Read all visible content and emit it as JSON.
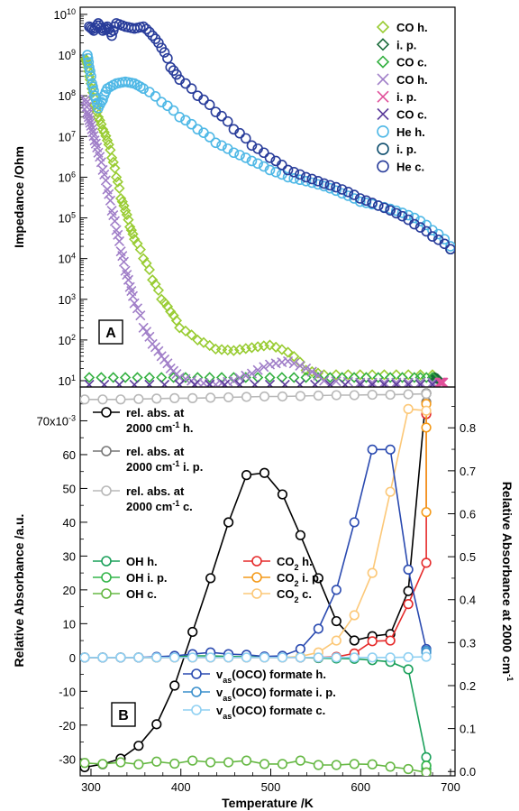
{
  "chart_data": [
    {
      "panel": "A",
      "type": "scatter",
      "xlim": [
        290,
        705
      ],
      "ylim": [
        7,
        15000000000
      ],
      "yscale": "log",
      "ylabel": "Impedance /Ohm",
      "yticks": [
        "10",
        "10",
        "10",
        "10",
        "10",
        "10",
        "10",
        "10",
        "10",
        "10"
      ],
      "ytick_exponents": [
        "1",
        "2",
        "3",
        "4",
        "5",
        "6",
        "7",
        "8",
        "9",
        "10"
      ],
      "legend_position": "top-right",
      "series": [
        {
          "name": "CO h.",
          "marker": "diamond",
          "color": "#99cc33",
          "x": [
            296,
            298,
            300,
            303,
            306,
            310,
            315,
            320,
            325,
            330,
            335,
            340,
            345,
            350,
            360,
            370,
            380,
            390,
            400,
            420,
            440,
            460,
            480,
            500,
            520,
            540,
            560,
            600,
            640,
            680
          ],
          "y": [
            800000000,
            600000000,
            300000000,
            150000000,
            60000000,
            30000000,
            15000000,
            8000000,
            3000000,
            1000000,
            300000,
            150000,
            60000,
            30000,
            10000,
            3000,
            1000,
            500,
            200,
            100,
            60,
            55,
            65,
            75,
            50,
            18,
            14,
            14,
            14,
            14
          ]
        },
        {
          "name": "i. p.",
          "marker": "diamond",
          "color": "#1a6b3a",
          "x": [
            682,
            686
          ],
          "y": [
            12,
            11
          ]
        },
        {
          "name": "CO c.",
          "marker": "diamond",
          "color": "#33b040",
          "x": [
            300,
            340,
            380,
            420,
            460,
            500,
            540,
            580,
            620,
            660,
            680
          ],
          "y": [
            12,
            12,
            12,
            12,
            12,
            12,
            12,
            12,
            12,
            12,
            12
          ]
        },
        {
          "name": "CO h.",
          "marker": "x",
          "color": "#a07ec8",
          "x": [
            296,
            298,
            300,
            303,
            306,
            310,
            315,
            320,
            325,
            330,
            335,
            340,
            345,
            350,
            360,
            370,
            380,
            390,
            400,
            420,
            440,
            460,
            480,
            500,
            520,
            540,
            560,
            600,
            640,
            680
          ],
          "y": [
            80000000,
            40000000,
            25000000,
            15000000,
            8000000,
            4000000,
            1500000,
            500000,
            150000,
            50000,
            15000,
            5000,
            2000,
            800,
            200,
            80,
            40,
            20,
            12,
            9,
            8,
            10,
            15,
            25,
            30,
            20,
            10,
            9,
            9,
            9
          ]
        },
        {
          "name": "i. p.",
          "marker": "x",
          "color": "#e0509a",
          "x": [
            688,
            692
          ],
          "y": [
            9,
            9
          ]
        },
        {
          "name": "CO c.",
          "marker": "x",
          "color": "#5a3a9a",
          "x": [
            300,
            400,
            500,
            600,
            680
          ],
          "y": [
            8,
            8,
            8,
            8,
            8
          ]
        },
        {
          "name": "He h.",
          "marker": "circle",
          "color": "#4fb8e6",
          "x": [
            298,
            300,
            303,
            306,
            310,
            315,
            320,
            330,
            340,
            350,
            360,
            380,
            400,
            420,
            440,
            460,
            480,
            500,
            520,
            540,
            560,
            580,
            600,
            620,
            640,
            660,
            680,
            700
          ],
          "y": [
            1000000000,
            500000000,
            200000000,
            100000000,
            50000000,
            80000000,
            150000000,
            200000000,
            220000000,
            200000000,
            150000000,
            70000000,
            30000000,
            15000000,
            7000000,
            4000000,
            2500000,
            1500000,
            1000000,
            800000,
            600000,
            400000,
            250000,
            200000,
            150000,
            100000,
            50000,
            20000
          ]
        },
        {
          "name": "i. p.",
          "marker": "circle",
          "color": "#0e4e6e",
          "x": [
            700
          ],
          "y": [
            17000
          ]
        },
        {
          "name": "He c.",
          "marker": "circle",
          "color": "#283c9a",
          "x": [
            300,
            305,
            310,
            315,
            320,
            325,
            330,
            340,
            350,
            360,
            370,
            380,
            390,
            400,
            420,
            440,
            460,
            480,
            500,
            520,
            540,
            560,
            580,
            600,
            620,
            640,
            660,
            680,
            700
          ],
          "y": [
            5000000000,
            4000000000,
            6000000000,
            4000000000,
            5000000000,
            3000000000,
            6000000000,
            5000000000,
            4500000000,
            5000000000,
            3000000000,
            1500000000,
            500000000,
            250000000,
            100000000,
            40000000,
            15000000,
            6000000,
            3000000,
            1500000,
            1000000,
            700000,
            500000,
            300000,
            200000,
            130000,
            70000,
            35000,
            17000
          ]
        }
      ]
    },
    {
      "panel": "B",
      "type": "line",
      "xlabel": "Temperature /K",
      "xlim": [
        288,
        705
      ],
      "xticks": [
        "300",
        "400",
        "500",
        "600",
        "700"
      ],
      "ylabel": "Relative Absorbance /a.u.",
      "ylim": [
        -35,
        80
      ],
      "yticks": [
        "-30",
        "-20",
        "-10",
        "0",
        "10",
        "20",
        "30",
        "40",
        "50",
        "60",
        "70x10"
      ],
      "ytick_top_exponent": "-3",
      "y2label": "Relative Absorbance at 2000 cm",
      "y2label_superscript": "-1",
      "y2lim": [
        -0.01,
        0.895
      ],
      "y2ticks": [
        "0.0",
        "0.1",
        "0.2",
        "0.3",
        "0.4",
        "0.5",
        "0.6",
        "0.7",
        "0.8"
      ],
      "legend_groups": [
        "top-left",
        "left",
        "center",
        "bottom-right"
      ],
      "series": [
        {
          "name_lines": [
            "rel. abs. at",
            "2000 cm",
            "h."
          ],
          "sup": "-1",
          "axis": "right",
          "color": "#000000",
          "x": [
            293,
            313,
            333,
            353,
            373,
            393,
            413,
            433,
            453,
            473,
            493,
            513,
            533,
            553,
            573,
            593,
            613,
            633,
            653,
            673
          ],
          "y": [
            0.01,
            0.017,
            0.03,
            0.06,
            0.11,
            0.2,
            0.325,
            0.45,
            0.58,
            0.69,
            0.695,
            0.645,
            0.55,
            0.45,
            0.35,
            0.305,
            0.315,
            0.32,
            0.42,
            0.88
          ]
        },
        {
          "name_lines": [
            "rel. abs. at",
            "2000 cm",
            "i. p."
          ],
          "sup": "-1",
          "axis": "right",
          "color": "#777777",
          "x": [
            673,
            673
          ],
          "y": [
            0.88,
            0.86
          ]
        },
        {
          "name_lines": [
            "rel. abs. at",
            "2000 cm",
            "c."
          ],
          "sup": "-1",
          "axis": "right",
          "color": "#b8b8b8",
          "x": [
            293,
            313,
            333,
            353,
            373,
            393,
            413,
            433,
            453,
            473,
            493,
            513,
            533,
            553,
            573,
            593,
            613,
            633,
            653,
            673
          ],
          "y": [
            0.866,
            0.866,
            0.866,
            0.867,
            0.868,
            0.869,
            0.869,
            0.87,
            0.871,
            0.872,
            0.873,
            0.873,
            0.874,
            0.875,
            0.876,
            0.876,
            0.877,
            0.877,
            0.878,
            0.879
          ]
        },
        {
          "name": "OH h.",
          "axis": "left",
          "color": "#1aa05a",
          "x": [
            293,
            313,
            333,
            353,
            373,
            393,
            413,
            433,
            453,
            473,
            493,
            513,
            533,
            553,
            573,
            593,
            613,
            633,
            653,
            673,
            673,
            673
          ],
          "y": [
            0,
            0,
            0,
            0,
            0,
            0.2,
            0.5,
            0.5,
            0.3,
            0.2,
            0.1,
            0.1,
            0,
            -0.2,
            -0.3,
            -0.4,
            -0.8,
            -1.3,
            -3.5,
            -29.5,
            -32,
            -33
          ]
        },
        {
          "name": "OH i. p.",
          "axis": "left",
          "color": "#33b54a",
          "x": [
            673,
            673
          ],
          "y": [
            -32,
            -34
          ]
        },
        {
          "name": "OH c.",
          "axis": "left",
          "color": "#66b844",
          "x": [
            293,
            313,
            333,
            353,
            373,
            393,
            413,
            433,
            453,
            473,
            493,
            513,
            533,
            553,
            573,
            593,
            613,
            633,
            653,
            673
          ],
          "y": [
            -31.2,
            -31.5,
            -31,
            -31.6,
            -30.8,
            -31.4,
            -30.5,
            -31,
            -31,
            -30.5,
            -31.5,
            -31.5,
            -30.5,
            -31.8,
            -31.8,
            -31.5,
            -31.6,
            -32.3,
            -33,
            -34
          ]
        },
        {
          "name": "CO",
          "sub": "2",
          "suffix": " h.",
          "axis": "left",
          "color": "#e52a2a",
          "x": [
            293,
            313,
            333,
            353,
            373,
            393,
            413,
            433,
            453,
            473,
            493,
            513,
            533,
            553,
            573,
            593,
            613,
            633,
            653,
            673,
            673
          ],
          "y": [
            0,
            0,
            0,
            0,
            0,
            0,
            0,
            0,
            0,
            0,
            0,
            0,
            0,
            0,
            0.2,
            1.2,
            4.8,
            5,
            15.8,
            28,
            72
          ]
        },
        {
          "name": "CO",
          "sub": "2",
          "suffix": " i. p.",
          "axis": "left",
          "color": "#f49a1a",
          "x": [
            673,
            673,
            673
          ],
          "y": [
            68,
            43,
            75
          ]
        },
        {
          "name": "CO",
          "sub": "2",
          "suffix": " c.",
          "axis": "left",
          "color": "#fcc878",
          "x": [
            293,
            313,
            333,
            353,
            373,
            393,
            413,
            433,
            453,
            473,
            493,
            513,
            533,
            553,
            573,
            593,
            613,
            633,
            653,
            673
          ],
          "y": [
            0,
            0,
            0,
            0,
            0,
            0,
            0,
            0,
            0,
            0,
            0,
            0,
            0.3,
            1.5,
            5,
            12.5,
            25,
            49,
            73.5,
            73
          ]
        },
        {
          "name": "v",
          "sub": "as",
          "suffix": "(OCO) formate h.",
          "axis": "left",
          "color": "#2a4ab0",
          "x": [
            293,
            313,
            333,
            353,
            373,
            393,
            413,
            433,
            453,
            473,
            493,
            513,
            533,
            553,
            573,
            593,
            613,
            633,
            653,
            673
          ],
          "y": [
            0,
            0,
            0,
            0,
            0.2,
            0.5,
            1,
            1.5,
            1,
            0.8,
            0.3,
            0.5,
            2.5,
            8.5,
            20,
            40,
            61.5,
            61.5,
            26,
            2.5
          ]
        },
        {
          "name": "v",
          "sub": "as",
          "suffix": "(OCO) formate i. p.",
          "axis": "left",
          "color": "#3a8fcc",
          "x": [
            673,
            673
          ],
          "y": [
            2,
            1.5
          ]
        },
        {
          "name": "v",
          "sub": "as",
          "suffix": "(OCO) formate c.",
          "axis": "left",
          "color": "#8fd0f2",
          "x": [
            293,
            313,
            333,
            353,
            373,
            393,
            413,
            433,
            453,
            473,
            493,
            513,
            533,
            553,
            573,
            593,
            613,
            633,
            653,
            673
          ],
          "y": [
            0,
            0,
            0,
            0,
            0,
            0,
            0,
            0,
            0,
            0,
            0,
            0,
            0,
            0,
            0,
            0,
            0,
            0,
            0.1,
            0.2
          ]
        }
      ]
    }
  ],
  "panel_labels": [
    "A",
    "B"
  ]
}
